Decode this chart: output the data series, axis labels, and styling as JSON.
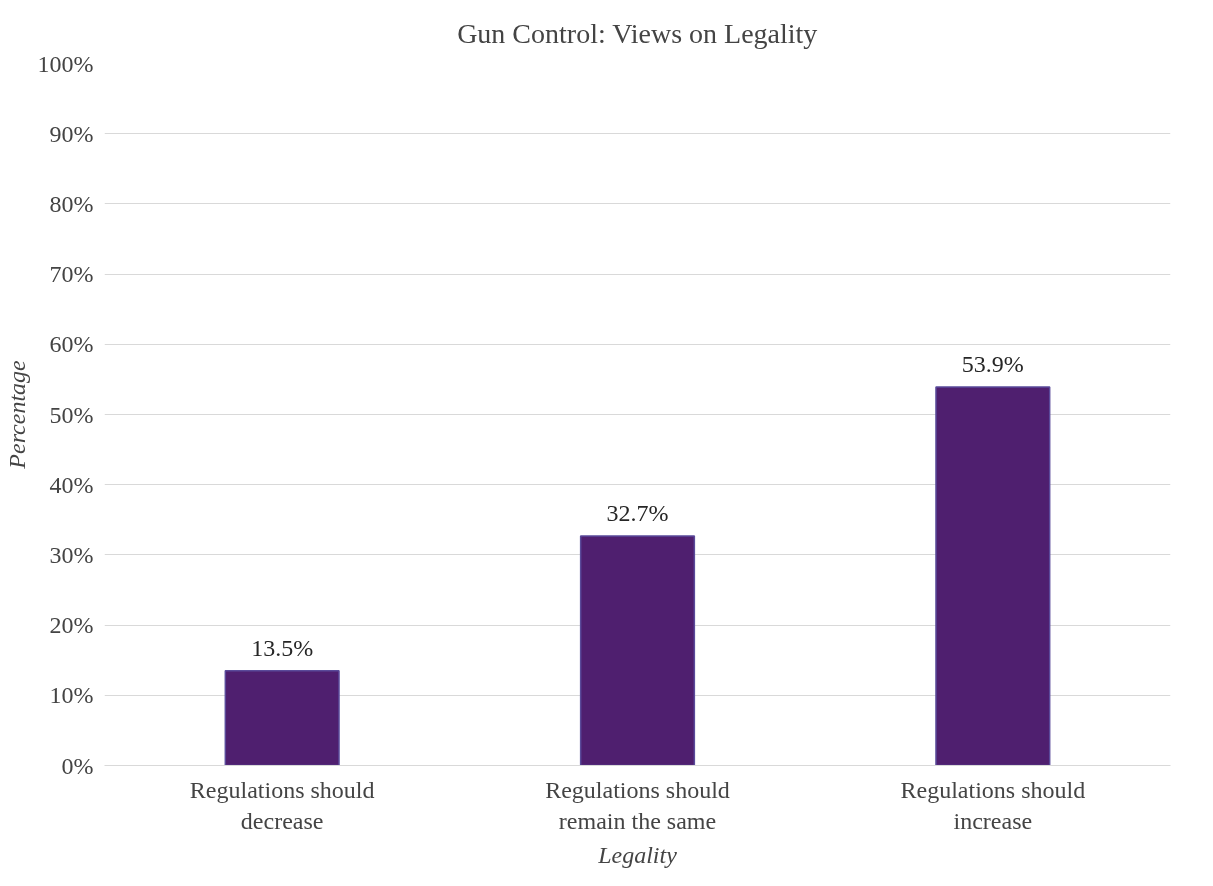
{
  "chart_data": {
    "type": "bar",
    "title": "Gun Control: Views on Legality",
    "xlabel": "Legality",
    "ylabel": "Percentage",
    "categories": [
      "Regulations should decrease",
      "Regulations should remain the same",
      "Regulations should increase"
    ],
    "values": [
      13.5,
      32.7,
      53.9
    ],
    "color": "#4f1f6f",
    "value_labels": [
      "13.5%",
      "32.7%",
      "53.9%"
    ],
    "ylim": [
      0,
      100
    ],
    "yticks": [
      {
        "value": 0,
        "label": "0%"
      },
      {
        "value": 10,
        "label": "10%"
      },
      {
        "value": 20,
        "label": "20%"
      },
      {
        "value": 30,
        "label": "30%"
      },
      {
        "value": 40,
        "label": "40%"
      },
      {
        "value": 50,
        "label": "50%"
      },
      {
        "value": 60,
        "label": "60%"
      },
      {
        "value": 70,
        "label": "70%"
      },
      {
        "value": 80,
        "label": "80%"
      },
      {
        "value": 90,
        "label": "90%"
      },
      {
        "value": 100,
        "label": "100%"
      }
    ],
    "grid": "y"
  }
}
